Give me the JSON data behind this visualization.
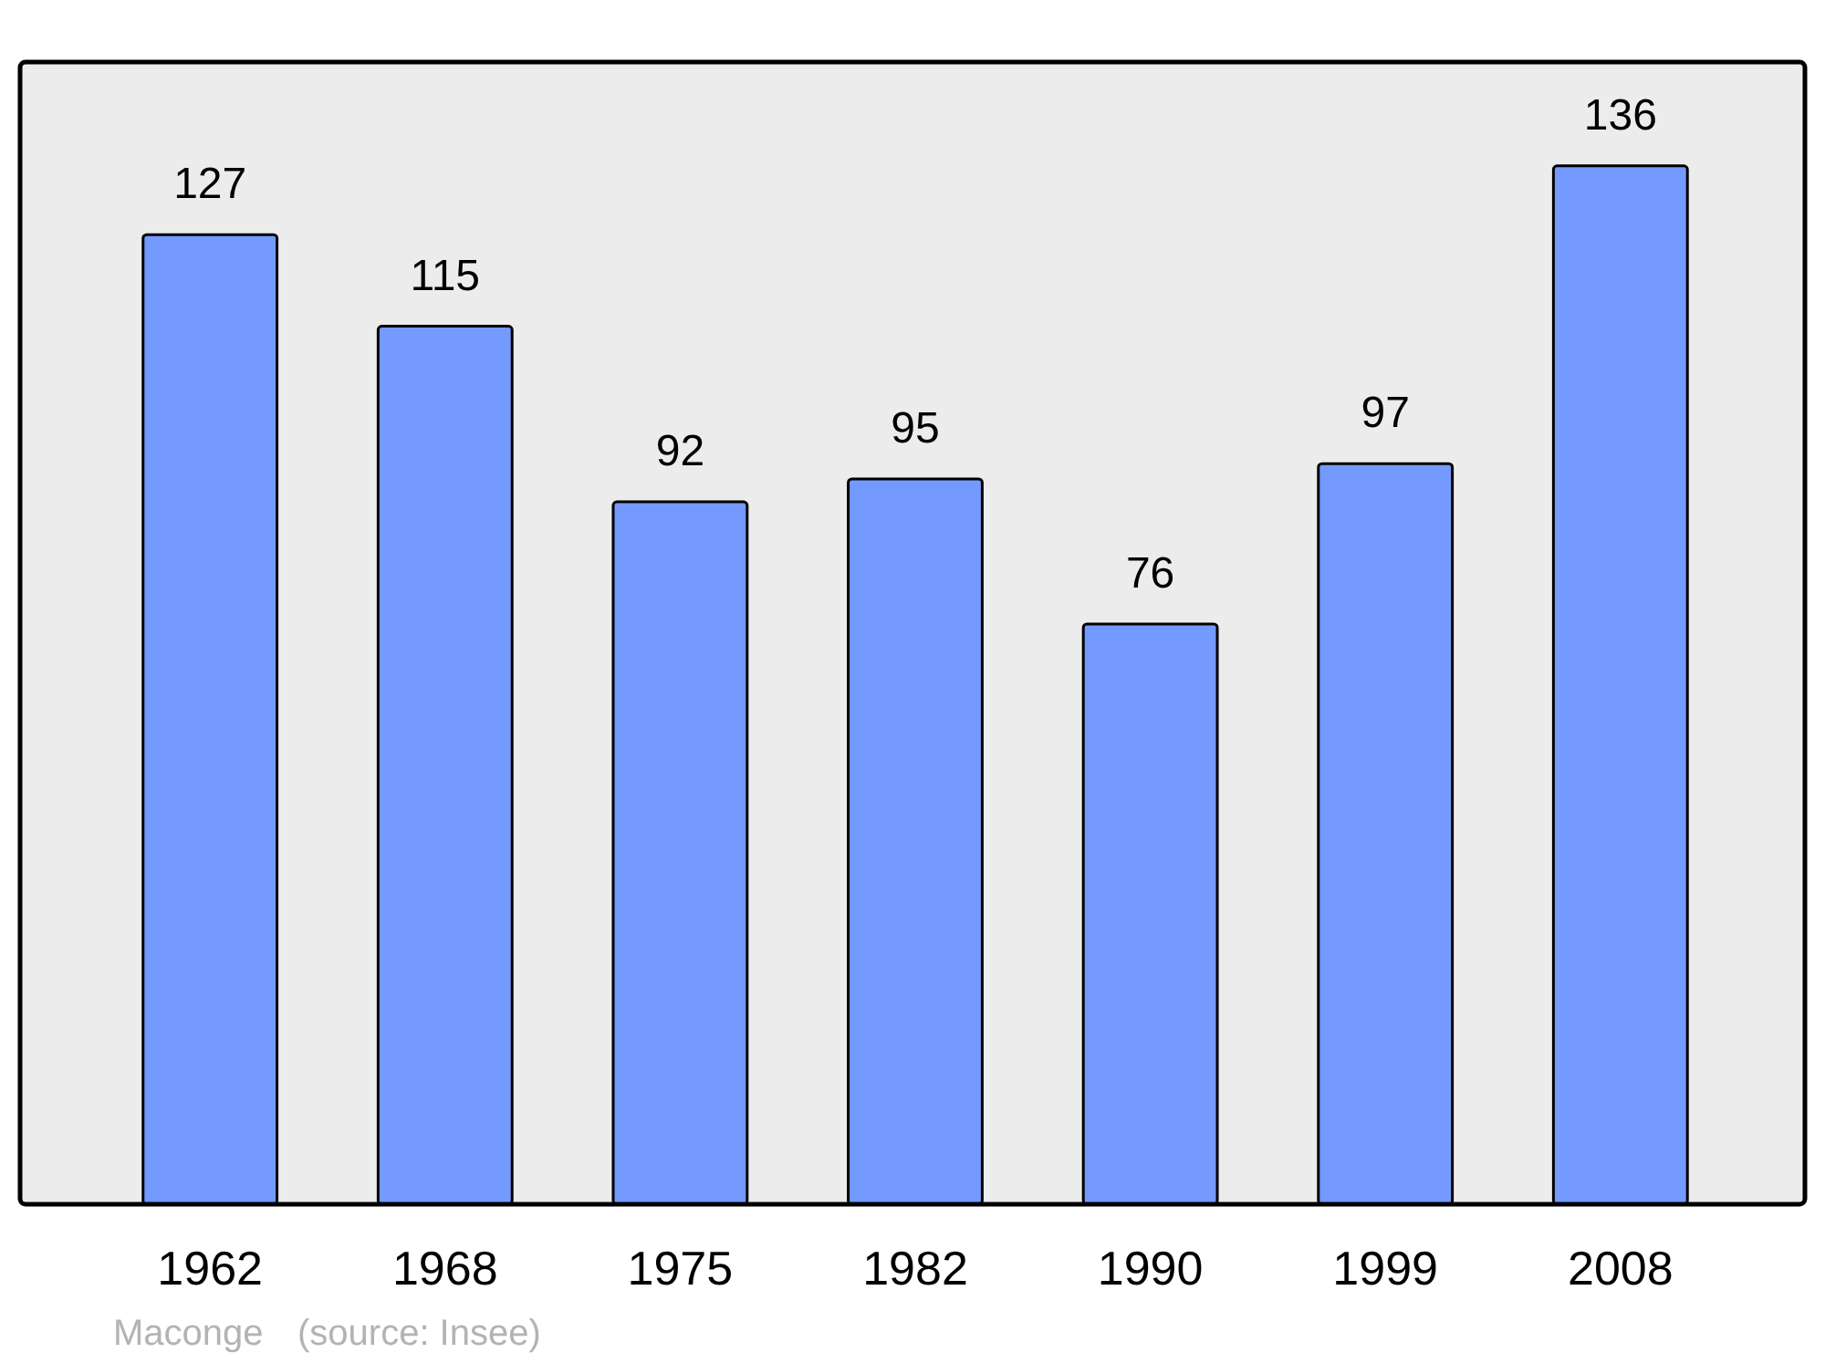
{
  "chart_data": {
    "type": "bar",
    "categories": [
      "1962",
      "1968",
      "1975",
      "1982",
      "1990",
      "1999",
      "2008"
    ],
    "values": [
      127,
      115,
      92,
      95,
      76,
      97,
      136
    ],
    "color": "#7499ff",
    "data_labels": true,
    "annotations": [
      "Maconge",
      "(source: Insee)"
    ]
  }
}
